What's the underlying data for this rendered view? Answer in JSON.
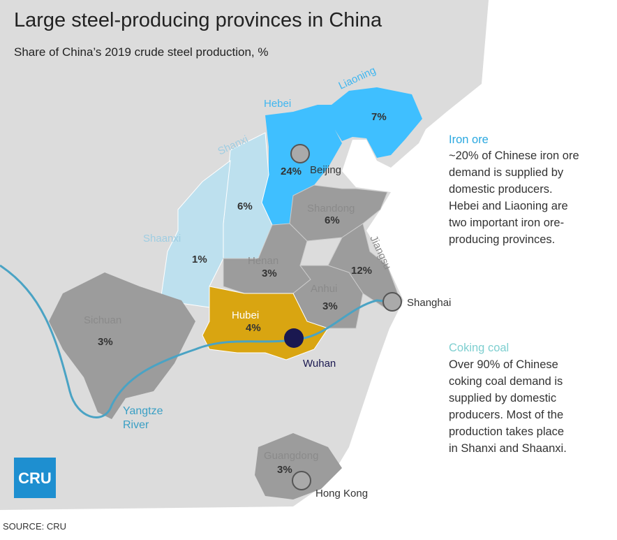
{
  "header": {
    "title": "Large steel-producing provinces in China",
    "subtitle": "Share of China’s 2019 crude steel production, %"
  },
  "provinces": [
    {
      "name": "Liaoning",
      "share": "7%"
    },
    {
      "name": "Hebei",
      "share": "24%"
    },
    {
      "name": "Shanxi",
      "share": "6%"
    },
    {
      "name": "Shaanxi",
      "share": "1%"
    },
    {
      "name": "Shandong",
      "share": "6%"
    },
    {
      "name": "Henan",
      "share": "3%"
    },
    {
      "name": "Jiangsu",
      "share": "12%"
    },
    {
      "name": "Anhui",
      "share": "3%"
    },
    {
      "name": "Hubei",
      "share": "4%"
    },
    {
      "name": "Sichuan",
      "share": "3%"
    },
    {
      "name": "Guangdong",
      "share": "3%"
    }
  ],
  "cities": [
    "Beijing",
    "Shanghai",
    "Wuhan",
    "Hong Kong"
  ],
  "river": {
    "label": [
      "Yangtze",
      "River"
    ]
  },
  "notes": [
    {
      "title": "Iron ore",
      "lines": [
        "~20% of Chinese iron ore",
        "demand is supplied by",
        "domestic producers.",
        "Hebei and Liaoning are",
        "two important iron ore-",
        "producing provinces."
      ]
    },
    {
      "title": "Coking coal",
      "lines": [
        "Over 90% of Chinese",
        "coking coal demand is",
        "supplied by domestic",
        "producers. Most of the",
        "production takes place",
        "in Shanxi and Shaanxi."
      ]
    }
  ],
  "logo": "CRU",
  "source": "SOURCE: CRU"
}
